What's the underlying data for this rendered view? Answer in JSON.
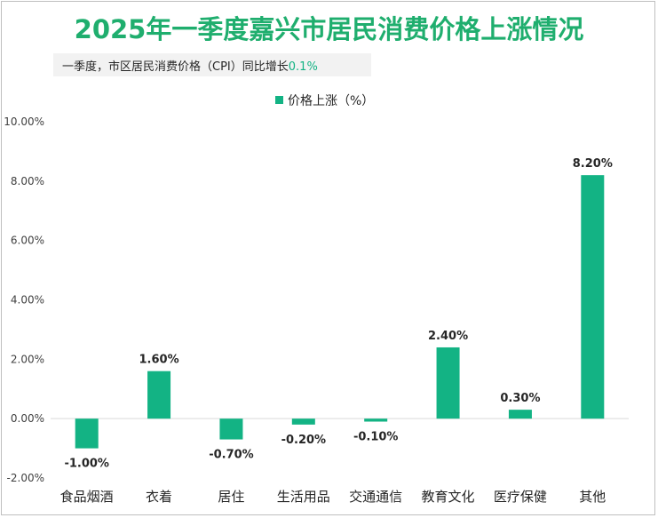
{
  "title": "2025年一季度嘉兴市居民消费价格上涨情况",
  "subtitle": {
    "text": "一季度，市区居民消费价格（CPI）同比增长",
    "value": "0.1%"
  },
  "colors": {
    "accent": "#13b384",
    "title": "#1fae6e"
  },
  "chart_data": {
    "type": "bar",
    "categories": [
      "食品烟酒",
      "衣着",
      "居住",
      "生活用品",
      "交通通信",
      "教育文化",
      "医疗保健",
      "其他"
    ],
    "series": [
      {
        "name": "价格上涨（%）",
        "values": [
          -1.0,
          1.6,
          -0.7,
          -0.2,
          -0.1,
          2.4,
          0.3,
          8.2
        ]
      }
    ],
    "data_labels": [
      "-1.00%",
      "1.60%",
      "-0.70%",
      "-0.20%",
      "-0.10%",
      "2.40%",
      "0.30%",
      "8.20%"
    ],
    "yticks": [
      "10.00%",
      "8.00%",
      "6.00%",
      "4.00%",
      "2.00%",
      "0.00%",
      "-2.00%"
    ],
    "ylim": [
      -2,
      10
    ],
    "legend_position": "top",
    "grid": false
  }
}
